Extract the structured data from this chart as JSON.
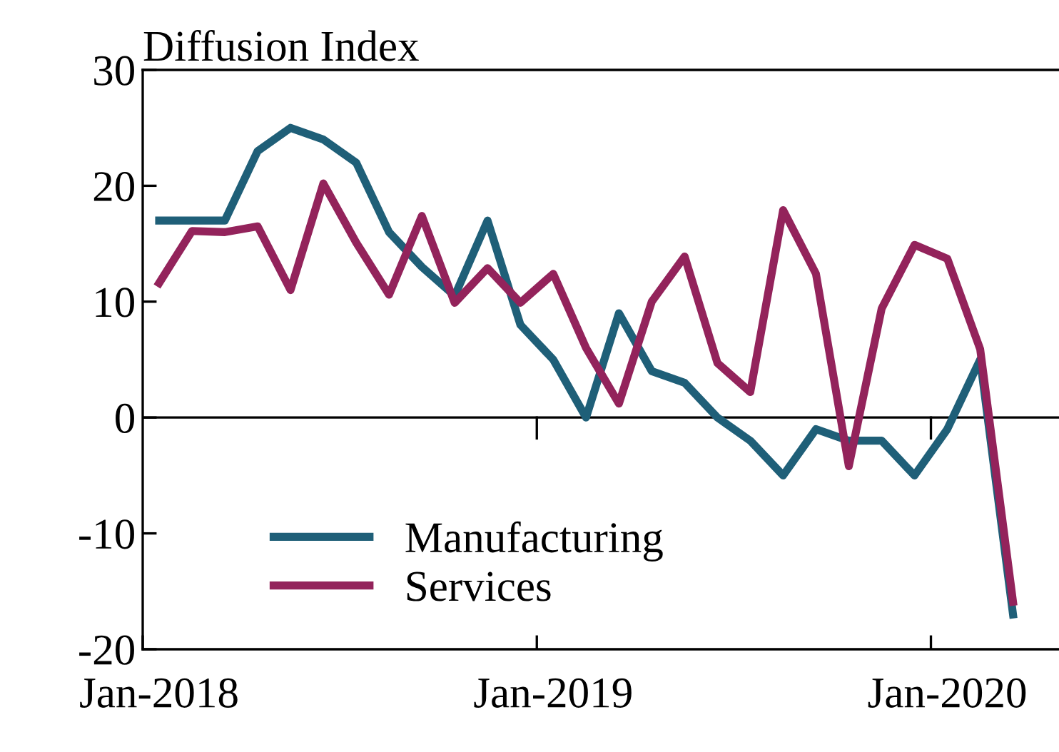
{
  "chart_data": {
    "type": "line",
    "title": "Diffusion Index",
    "categories": [
      "Jan-2018",
      null,
      null,
      null,
      null,
      null,
      null,
      null,
      null,
      null,
      null,
      null,
      "Jan-2019",
      null,
      null,
      null,
      null,
      null,
      null,
      null,
      null,
      null,
      null,
      null,
      "Jan-2020",
      null,
      null
    ],
    "series": [
      {
        "name": "Manufacturing",
        "color": "#1f5f78",
        "values": [
          17,
          17,
          17,
          23,
          25,
          24,
          22,
          16,
          13,
          10.5,
          17,
          8,
          5,
          0,
          9,
          4,
          3,
          0,
          -2,
          -5,
          -1,
          -2,
          -2,
          -5,
          -1,
          5,
          -17
        ]
      },
      {
        "name": "Services",
        "color": "#93235b",
        "values": [
          11.6,
          16.1,
          16,
          16.5,
          11,
          20.2,
          15.1,
          10.6,
          17.4,
          9.9,
          12.9,
          9.9,
          12.4,
          6,
          1.2,
          10,
          13.9,
          4.7,
          2.2,
          17.9,
          12.4,
          -4.2,
          9.4,
          14.9,
          13.7,
          5.9,
          -15.9
        ]
      }
    ],
    "ylim": [
      -20,
      30
    ],
    "yticks": [
      -20,
      -10,
      0,
      10,
      20,
      30
    ],
    "ref_lines": [
      {
        "axis": "y",
        "value": 0,
        "color": "#000000"
      }
    ],
    "grid": false,
    "legend": "bottom left",
    "marker": "none",
    "line_style": "solid"
  }
}
